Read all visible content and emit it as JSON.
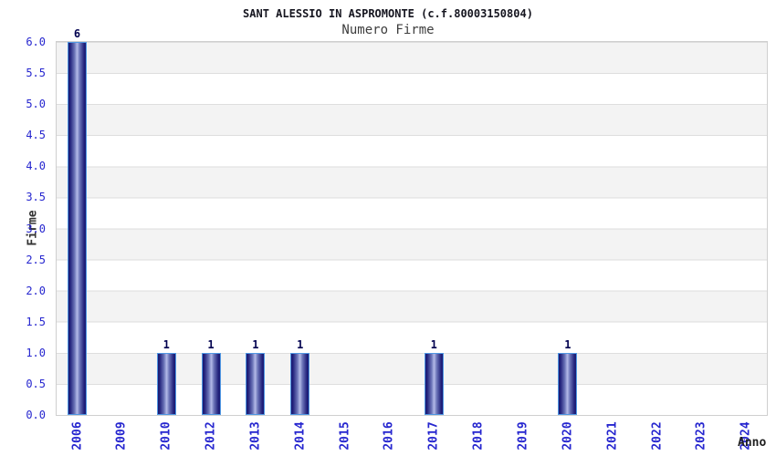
{
  "chart_data": {
    "type": "bar",
    "title": "SANT ALESSIO IN ASPROMONTE (c.f.80003150804)",
    "subtitle": "Numero Firme",
    "xlabel": "Anno",
    "ylabel": "Firme",
    "categories": [
      "2006",
      "2009",
      "2010",
      "2012",
      "2013",
      "2014",
      "2015",
      "2016",
      "2017",
      "2018",
      "2019",
      "2020",
      "2021",
      "2022",
      "2023",
      "2024"
    ],
    "values": [
      6,
      0,
      1,
      1,
      1,
      1,
      0,
      0,
      1,
      0,
      0,
      1,
      0,
      0,
      0,
      0
    ],
    "bar_value_labels": [
      "6",
      "",
      "1",
      "1",
      "1",
      "1",
      "",
      "",
      "1",
      "",
      "",
      "1",
      "",
      "",
      "",
      ""
    ],
    "yticks": [
      "6.0",
      "5.5",
      "5.0",
      "4.5",
      "4.0",
      "3.5",
      "3.0",
      "2.5",
      "2.0",
      "1.5",
      "1.0",
      "0.5",
      "0.0"
    ],
    "ylim": [
      0,
      6
    ],
    "ytick_step": 0.5,
    "grid": "horizontal gridlines with alternating gray/white bands",
    "legend": "none",
    "colors": {
      "tick_label_blue": "#2626cf",
      "bar_value_label_navy": "#00004f",
      "bar_edge_dark_navy": "#1a1a72",
      "bar_center_light": "#b4bae8",
      "bar_border_light_blue": "#4f97e3",
      "band_gray": "#f3f3f3",
      "gridline_gray": "#dedede",
      "plot_border": "#cfcfcf",
      "title_color": "#15151f",
      "subtitle_color": "#3d3d3d"
    }
  }
}
